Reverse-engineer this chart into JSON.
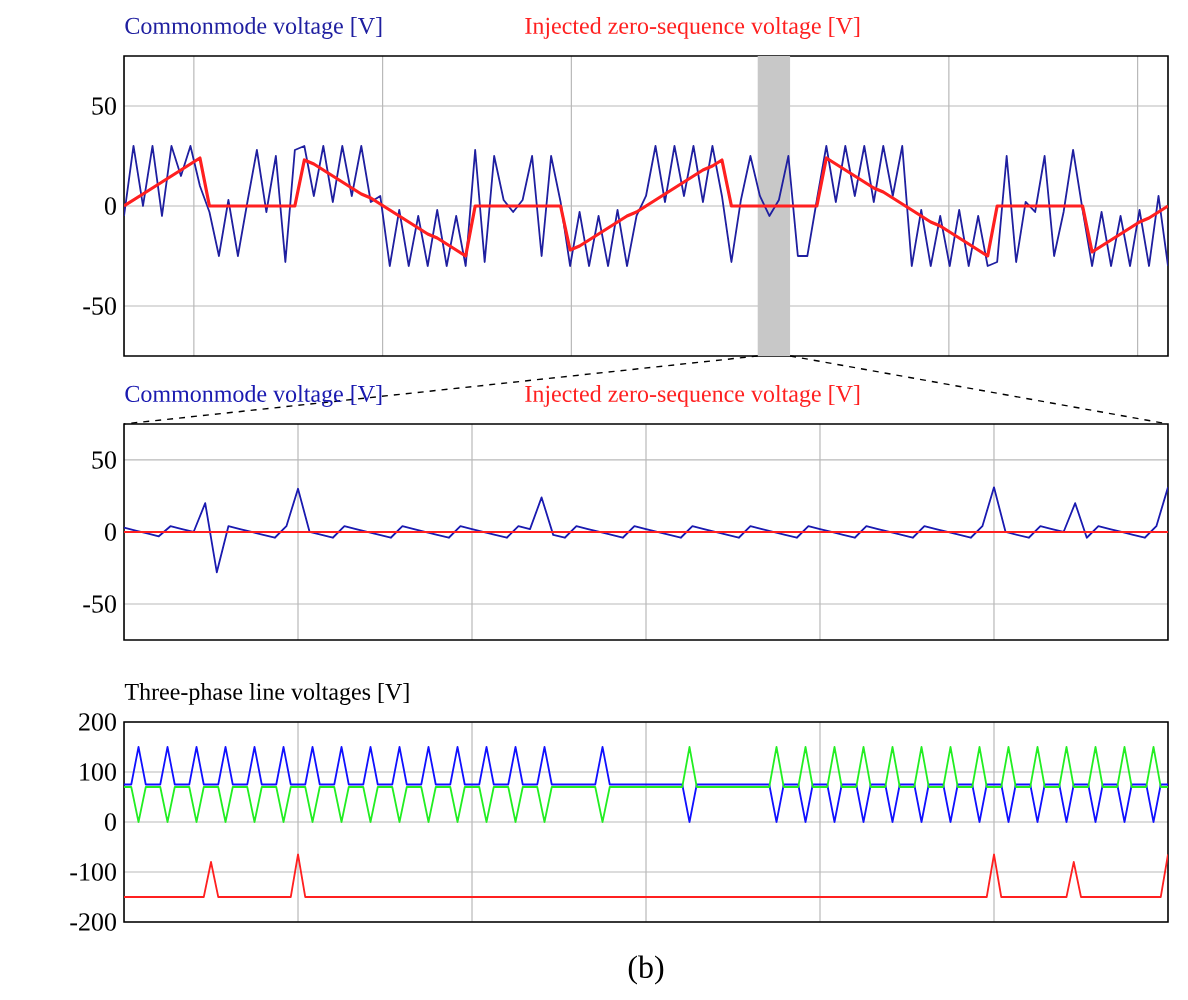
{
  "chart_data": [
    {
      "type": "line",
      "grid": true,
      "tick_labels": "y",
      "marker": "none",
      "line_style": "solid",
      "categories": [
        null,
        null,
        null,
        null,
        null,
        null,
        null,
        null,
        null,
        null,
        null,
        null,
        null,
        null,
        null,
        null,
        null,
        null,
        null,
        null,
        null,
        null,
        null,
        null,
        null,
        null,
        null,
        null,
        null,
        null,
        null,
        null,
        null,
        null,
        null,
        null,
        null,
        null,
        null,
        null,
        null,
        null,
        null,
        null,
        null,
        null,
        null,
        null,
        null,
        null,
        null,
        null,
        null,
        null,
        null,
        null,
        null,
        null,
        null,
        null,
        null,
        null,
        null,
        null,
        null,
        null,
        null,
        null,
        null,
        null,
        null,
        null,
        null,
        null,
        null,
        null,
        null,
        null,
        null,
        null,
        null,
        null,
        null,
        null,
        null,
        null,
        null,
        null,
        null,
        null,
        null,
        null,
        null,
        null,
        null,
        null,
        null,
        null,
        null,
        null,
        null,
        null,
        null,
        null,
        null,
        null,
        null,
        null,
        null,
        null,
        null
      ],
      "ylim": [
        -75,
        75
      ],
      "yticks": [
        -50,
        0,
        50
      ],
      "series": [
        {
          "name": "Commonmode voltage [V]",
          "color": "#1f1fa0",
          "values": [
            -5,
            30,
            0,
            30,
            -5,
            30,
            15,
            30,
            10,
            -3,
            -25,
            3,
            -25,
            2,
            28,
            -3,
            25,
            -28,
            28,
            30,
            5,
            30,
            2,
            30,
            5,
            30,
            2,
            5,
            -30,
            -2,
            -30,
            -5,
            -30,
            -2,
            -30,
            -5,
            -30,
            28,
            -28,
            25,
            3,
            -3,
            3,
            25,
            -25,
            25,
            2,
            -30,
            -3,
            -30,
            -5,
            -30,
            -2,
            -30,
            -5,
            5,
            30,
            2,
            30,
            5,
            30,
            2,
            30,
            5,
            -28,
            3,
            25,
            5,
            -5,
            3,
            25,
            -25,
            -25,
            3,
            30,
            2,
            30,
            5,
            30,
            2,
            30,
            5,
            30,
            -30,
            -2,
            -30,
            -5,
            -30,
            -2,
            -30,
            -5,
            -30,
            -28,
            25,
            -28,
            2,
            -3,
            25,
            -25,
            -3,
            28,
            -2,
            -30,
            -3,
            -30,
            -5,
            -30,
            -2,
            -30,
            5,
            -30
          ]
        },
        {
          "name": "Injected zero-sequence voltage [V]",
          "color": "#ff2020",
          "values": [
            0,
            3,
            6,
            9,
            12,
            15,
            18,
            21,
            24,
            0,
            0,
            0,
            0,
            0,
            0,
            0,
            0,
            0,
            0,
            23,
            21,
            18,
            15,
            12,
            9,
            6,
            4,
            1,
            -2,
            -5,
            -8,
            -11,
            -14,
            -16,
            -19,
            -22,
            -25,
            0,
            0,
            0,
            0,
            0,
            0,
            0,
            0,
            0,
            0,
            -22,
            -20,
            -17,
            -14,
            -11,
            -8,
            -5,
            -3,
            0,
            3,
            6,
            9,
            12,
            15,
            18,
            20,
            23,
            0,
            0,
            0,
            0,
            0,
            0,
            0,
            0,
            0,
            0,
            24,
            21,
            18,
            15,
            12,
            9,
            7,
            4,
            1,
            -2,
            -5,
            -8,
            -10,
            -13,
            -16,
            -19,
            -22,
            -25,
            0,
            0,
            0,
            0,
            0,
            0,
            0,
            0,
            0,
            0,
            -23,
            -20,
            -17,
            -14,
            -11,
            -8,
            -6,
            -3,
            0
          ]
        }
      ]
    },
    {
      "type": "line",
      "grid": true,
      "tick_labels": "y",
      "marker": "none",
      "line_style": "solid",
      "categories": [
        null,
        null,
        null,
        null,
        null,
        null,
        null,
        null,
        null,
        null,
        null,
        null,
        null,
        null,
        null,
        null,
        null,
        null,
        null,
        null,
        null,
        null,
        null,
        null,
        null,
        null,
        null,
        null,
        null,
        null,
        null,
        null,
        null,
        null,
        null,
        null,
        null,
        null,
        null,
        null,
        null,
        null,
        null,
        null,
        null,
        null,
        null,
        null,
        null,
        null,
        null,
        null,
        null,
        null,
        null,
        null,
        null,
        null,
        null,
        null,
        null,
        null,
        null,
        null,
        null,
        null,
        null,
        null,
        null,
        null,
        null,
        null,
        null,
        null,
        null,
        null,
        null,
        null,
        null,
        null,
        null,
        null,
        null,
        null,
        null,
        null,
        null,
        null,
        null,
        null,
        null
      ],
      "ylim": [
        -75,
        75
      ],
      "yticks": [
        -50,
        0,
        50
      ],
      "series": [
        {
          "name": "Commonmode voltage [V]",
          "color": "#1a1ab0",
          "values": [
            3,
            1,
            -1,
            -3,
            4,
            2,
            0,
            20,
            -28,
            4,
            2,
            0,
            -2,
            -4,
            4,
            30,
            0,
            -2,
            -4,
            4,
            2,
            0,
            -2,
            -4,
            4,
            2,
            0,
            -2,
            -4,
            4,
            2,
            0,
            -2,
            -4,
            4,
            2,
            24,
            -2,
            -4,
            4,
            2,
            0,
            -2,
            -4,
            4,
            2,
            0,
            -2,
            -4,
            4,
            2,
            0,
            -2,
            -4,
            4,
            2,
            0,
            -2,
            -4,
            4,
            2,
            0,
            -2,
            -4,
            4,
            2,
            0,
            -2,
            -4,
            4,
            2,
            0,
            -2,
            -4,
            4,
            31,
            0,
            -2,
            -4,
            4,
            2,
            0,
            20,
            -4,
            4,
            2,
            0,
            -2,
            -4,
            4,
            31
          ]
        },
        {
          "name": "Injected zero-sequence voltage [V]",
          "color": "#ff2020",
          "values": [
            0,
            0,
            0,
            0,
            0,
            0,
            0,
            0,
            0,
            0,
            0,
            0,
            0,
            0,
            0,
            0,
            0,
            0,
            0,
            0,
            0,
            0,
            0,
            0,
            0,
            0,
            0,
            0,
            0,
            0,
            0,
            0,
            0,
            0,
            0,
            0,
            0,
            0,
            0,
            0,
            0,
            0,
            0,
            0,
            0,
            0,
            0,
            0,
            0,
            0,
            0,
            0,
            0,
            0,
            0,
            0,
            0,
            0,
            0,
            0,
            0,
            0,
            0,
            0,
            0,
            0,
            0,
            0,
            0,
            0,
            0,
            0,
            0,
            0,
            0,
            0,
            0,
            0,
            0,
            0,
            0,
            0,
            0,
            0,
            0,
            0,
            0,
            0,
            0,
            0,
            0
          ]
        }
      ]
    },
    {
      "type": "line",
      "title": "Three-phase line voltages [V]",
      "grid": true,
      "tick_labels": "y",
      "marker": "none",
      "line_style": "solid",
      "annotations": [
        "(b)"
      ],
      "categories": [
        null,
        null,
        null,
        null,
        null,
        null,
        null,
        null,
        null,
        null,
        null,
        null,
        null,
        null,
        null,
        null,
        null,
        null,
        null,
        null,
        null,
        null,
        null,
        null,
        null,
        null,
        null,
        null,
        null,
        null,
        null,
        null,
        null,
        null,
        null,
        null,
        null,
        null,
        null,
        null,
        null,
        null,
        null,
        null,
        null,
        null,
        null,
        null,
        null,
        null,
        null,
        null,
        null,
        null,
        null,
        null,
        null,
        null,
        null,
        null,
        null,
        null,
        null,
        null,
        null,
        null,
        null,
        null,
        null,
        null,
        null,
        null,
        null,
        null,
        null,
        null,
        null,
        null,
        null,
        null,
        null,
        null,
        null,
        null,
        null,
        null,
        null,
        null,
        null,
        null,
        null,
        null,
        null,
        null,
        null,
        null,
        null,
        null,
        null,
        null,
        null,
        null,
        null,
        null,
        null,
        null,
        null,
        null,
        null,
        null,
        null,
        null,
        null,
        null,
        null,
        null,
        null,
        null,
        null,
        null,
        null,
        null,
        null,
        null,
        null,
        null,
        null,
        null,
        null,
        null,
        null,
        null,
        null,
        null,
        null,
        null,
        null,
        null,
        null,
        null,
        null,
        null,
        null,
        null,
        null
      ],
      "ylim": [
        -200,
        200
      ],
      "yticks": [
        -200,
        -100,
        0,
        100,
        200
      ],
      "series": [
        {
          "color": "#1010ff",
          "values": [
            75,
            75,
            150,
            75,
            75,
            75,
            150,
            75,
            75,
            75,
            150,
            75,
            75,
            75,
            150,
            75,
            75,
            75,
            150,
            75,
            75,
            75,
            150,
            75,
            75,
            75,
            150,
            75,
            75,
            75,
            150,
            75,
            75,
            75,
            150,
            75,
            75,
            75,
            150,
            75,
            75,
            75,
            150,
            75,
            75,
            75,
            150,
            75,
            75,
            75,
            150,
            75,
            75,
            75,
            150,
            75,
            75,
            75,
            150,
            75,
            75,
            75,
            75,
            75,
            75,
            75,
            150,
            75,
            75,
            75,
            75,
            75,
            75,
            75,
            75,
            75,
            75,
            75,
            0,
            75,
            75,
            75,
            75,
            75,
            75,
            75,
            75,
            75,
            75,
            75,
            0,
            75,
            75,
            75,
            0,
            75,
            75,
            75,
            0,
            75,
            75,
            75,
            0,
            75,
            75,
            75,
            0,
            75,
            75,
            75,
            0,
            75,
            75,
            75,
            0,
            75,
            75,
            75,
            0,
            75,
            75,
            75,
            0,
            75,
            75,
            75,
            0,
            75,
            75,
            75,
            0,
            75,
            75,
            75,
            0,
            75,
            75,
            75,
            0,
            75,
            75,
            75,
            0,
            75,
            75
          ]
        },
        {
          "color": "#22ee22",
          "values": [
            70,
            70,
            0,
            70,
            70,
            70,
            0,
            70,
            70,
            70,
            0,
            70,
            70,
            70,
            0,
            70,
            70,
            70,
            0,
            70,
            70,
            70,
            0,
            70,
            70,
            70,
            0,
            70,
            70,
            70,
            0,
            70,
            70,
            70,
            0,
            70,
            70,
            70,
            0,
            70,
            70,
            70,
            0,
            70,
            70,
            70,
            0,
            70,
            70,
            70,
            0,
            70,
            70,
            70,
            0,
            70,
            70,
            70,
            0,
            70,
            70,
            70,
            70,
            70,
            70,
            70,
            0,
            70,
            70,
            70,
            70,
            70,
            70,
            70,
            70,
            70,
            70,
            70,
            150,
            70,
            70,
            70,
            70,
            70,
            70,
            70,
            70,
            70,
            70,
            70,
            150,
            70,
            70,
            70,
            150,
            70,
            70,
            70,
            150,
            70,
            70,
            70,
            150,
            70,
            70,
            70,
            150,
            70,
            70,
            70,
            150,
            70,
            70,
            70,
            150,
            70,
            70,
            70,
            150,
            70,
            70,
            70,
            150,
            70,
            70,
            70,
            150,
            70,
            70,
            70,
            150,
            70,
            70,
            70,
            150,
            70,
            70,
            70,
            150,
            70,
            70,
            70,
            150,
            70,
            70
          ]
        },
        {
          "color": "#ff2020",
          "values": [
            -150,
            -150,
            -150,
            -150,
            -150,
            -150,
            -150,
            -150,
            -150,
            -150,
            -150,
            -150,
            -80,
            -150,
            -150,
            -150,
            -150,
            -150,
            -150,
            -150,
            -150,
            -150,
            -150,
            -150,
            -65,
            -150,
            -150,
            -150,
            -150,
            -150,
            -150,
            -150,
            -150,
            -150,
            -150,
            -150,
            -150,
            -150,
            -150,
            -150,
            -150,
            -150,
            -150,
            -150,
            -150,
            -150,
            -150,
            -150,
            -150,
            -150,
            -150,
            -150,
            -150,
            -150,
            -150,
            -150,
            -150,
            -150,
            -150,
            -150,
            -150,
            -150,
            -150,
            -150,
            -150,
            -150,
            -150,
            -150,
            -150,
            -150,
            -150,
            -150,
            -150,
            -150,
            -150,
            -150,
            -150,
            -150,
            -150,
            -150,
            -150,
            -150,
            -150,
            -150,
            -150,
            -150,
            -150,
            -150,
            -150,
            -150,
            -150,
            -150,
            -150,
            -150,
            -150,
            -150,
            -150,
            -150,
            -150,
            -150,
            -150,
            -150,
            -150,
            -150,
            -150,
            -150,
            -150,
            -150,
            -150,
            -150,
            -150,
            -150,
            -150,
            -150,
            -150,
            -150,
            -150,
            -150,
            -150,
            -150,
            -65,
            -150,
            -150,
            -150,
            -150,
            -150,
            -150,
            -150,
            -150,
            -150,
            -150,
            -80,
            -150,
            -150,
            -150,
            -150,
            -150,
            -150,
            -150,
            -150,
            -150,
            -150,
            -150,
            -150,
            -65
          ]
        }
      ]
    }
  ]
}
